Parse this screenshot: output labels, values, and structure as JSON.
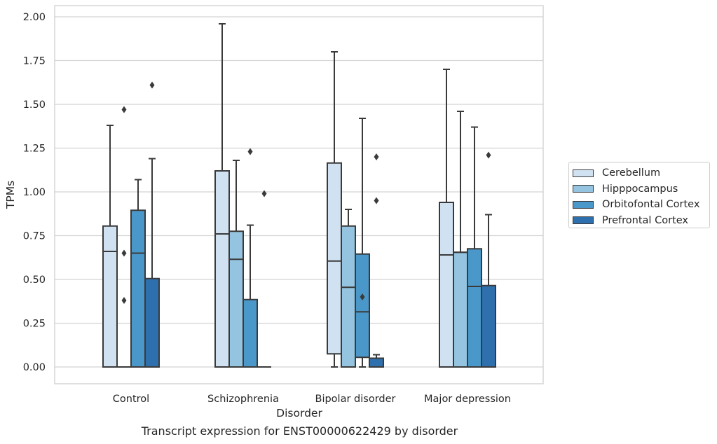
{
  "caption": "Transcript expression for ENST00000622429 by disorder",
  "chart_data": {
    "type": "boxplot",
    "title": "",
    "xlabel": "Disorder",
    "ylabel": "TPMs",
    "ylim": [
      -0.09,
      2.06
    ],
    "yticks": [
      "0.00",
      "0.25",
      "0.50",
      "0.75",
      "1.00",
      "1.25",
      "1.50",
      "1.75",
      "2.00"
    ],
    "categories": [
      "Control",
      "Schizophrenia",
      "Bipolar disorder",
      "Major depression"
    ],
    "grid": "horizontal",
    "legend_position": "right",
    "series": [
      {
        "name": "Cerebellum",
        "color": "#d0e1f2",
        "boxes": [
          {
            "whisker_low": 0.0,
            "q1": 0.0,
            "median": 0.66,
            "q3": 0.805,
            "whisker_high": 1.38,
            "outliers": []
          },
          {
            "whisker_low": 0.0,
            "q1": 0.0,
            "median": 0.76,
            "q3": 1.12,
            "whisker_high": 1.96,
            "outliers": []
          },
          {
            "whisker_low": 0.0,
            "q1": 0.075,
            "median": 0.605,
            "q3": 1.165,
            "whisker_high": 1.8,
            "outliers": []
          },
          {
            "whisker_low": 0.0,
            "q1": 0.0,
            "median": 0.64,
            "q3": 0.94,
            "whisker_high": 1.7,
            "outliers": []
          }
        ]
      },
      {
        "name": "Hipppocampus",
        "color": "#94c4df",
        "boxes": [
          {
            "whisker_low": 0.0,
            "q1": 0.0,
            "median": 0.0,
            "q3": 0.0,
            "whisker_high": 0.0,
            "outliers": [
              0.38,
              0.65,
              1.47
            ]
          },
          {
            "whisker_low": 0.0,
            "q1": 0.0,
            "median": 0.615,
            "q3": 0.775,
            "whisker_high": 1.18,
            "outliers": []
          },
          {
            "whisker_low": 0.0,
            "q1": 0.0,
            "median": 0.455,
            "q3": 0.805,
            "whisker_high": 0.9,
            "outliers": []
          },
          {
            "whisker_low": 0.0,
            "q1": 0.0,
            "median": 0.655,
            "q3": 0.655,
            "whisker_high": 1.46,
            "outliers": []
          }
        ]
      },
      {
        "name": "Orbitofontal Cortex",
        "color": "#4a98c9",
        "boxes": [
          {
            "whisker_low": 0.0,
            "q1": 0.0,
            "median": 0.65,
            "q3": 0.895,
            "whisker_high": 1.07,
            "outliers": []
          },
          {
            "whisker_low": 0.0,
            "q1": 0.0,
            "median": 0.0,
            "q3": 0.385,
            "whisker_high": 0.81,
            "outliers": [
              1.23
            ]
          },
          {
            "whisker_low": 0.0,
            "q1": 0.055,
            "median": 0.315,
            "q3": 0.645,
            "whisker_high": 1.42,
            "outliers": [
              0.4
            ]
          },
          {
            "whisker_low": 0.0,
            "q1": 0.0,
            "median": 0.46,
            "q3": 0.675,
            "whisker_high": 1.37,
            "outliers": []
          }
        ]
      },
      {
        "name": "Prefrontal Cortex",
        "color": "#2e6fad",
        "boxes": [
          {
            "whisker_low": 0.0,
            "q1": 0.0,
            "median": 0.0,
            "q3": 0.505,
            "whisker_high": 1.19,
            "outliers": [
              1.61
            ]
          },
          {
            "whisker_low": 0.0,
            "q1": 0.0,
            "median": 0.0,
            "q3": 0.0,
            "whisker_high": 0.0,
            "outliers": [
              0.99
            ]
          },
          {
            "whisker_low": 0.0,
            "q1": 0.0,
            "median": 0.0,
            "q3": 0.05,
            "whisker_high": 0.07,
            "outliers": [
              0.95,
              1.2
            ]
          },
          {
            "whisker_low": 0.0,
            "q1": 0.0,
            "median": 0.0,
            "q3": 0.465,
            "whisker_high": 0.87,
            "outliers": [
              1.21
            ]
          }
        ]
      }
    ]
  }
}
